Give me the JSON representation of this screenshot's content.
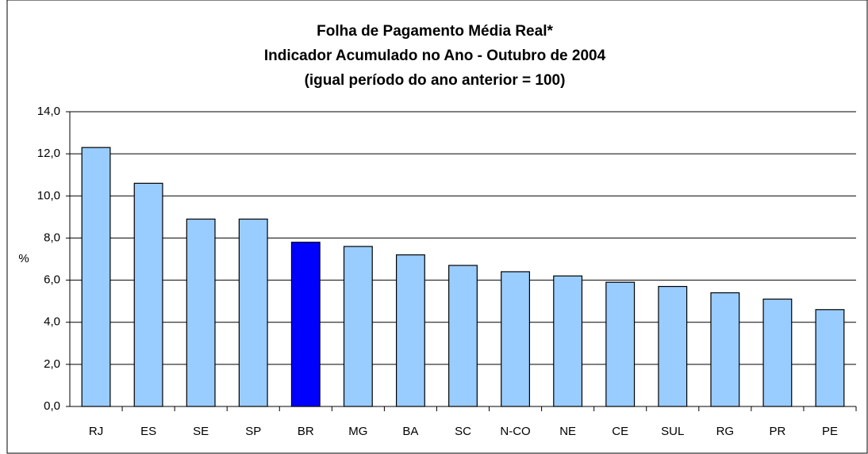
{
  "chart_data": {
    "type": "bar",
    "title": "Folha de Pagamento Média Real*",
    "subtitle": [
      "Indicador Acumulado no Ano - Outubro de 2004",
      "(igual período do ano anterior = 100)"
    ],
    "y_label": "%",
    "categories": [
      "RJ",
      "ES",
      "SE",
      "SP",
      "BR",
      "MG",
      "BA",
      "SC",
      "N-CO",
      "NE",
      "CE",
      "SUL",
      "RG",
      "PR",
      "PE"
    ],
    "values": [
      12.3,
      10.6,
      8.9,
      8.9,
      7.8,
      7.6,
      7.2,
      6.7,
      6.4,
      6.2,
      5.9,
      5.7,
      5.4,
      5.1,
      4.6
    ],
    "colors": [
      "#99ccff",
      "#99ccff",
      "#99ccff",
      "#99ccff",
      "#0000ff",
      "#99ccff",
      "#99ccff",
      "#99ccff",
      "#99ccff",
      "#99ccff",
      "#99ccff",
      "#99ccff",
      "#99ccff",
      "#99ccff",
      "#99ccff"
    ],
    "ylim": [
      0,
      14
    ],
    "yticks": [
      {
        "value": 0,
        "label": "0,0"
      },
      {
        "value": 2,
        "label": "2,0"
      },
      {
        "value": 4,
        "label": "4,0"
      },
      {
        "value": 6,
        "label": "6,0"
      },
      {
        "value": 8,
        "label": "8,0"
      },
      {
        "value": 10,
        "label": "10,0"
      },
      {
        "value": 12,
        "label": "12,0"
      },
      {
        "value": 14,
        "label": "14,0"
      }
    ],
    "grid": true
  }
}
